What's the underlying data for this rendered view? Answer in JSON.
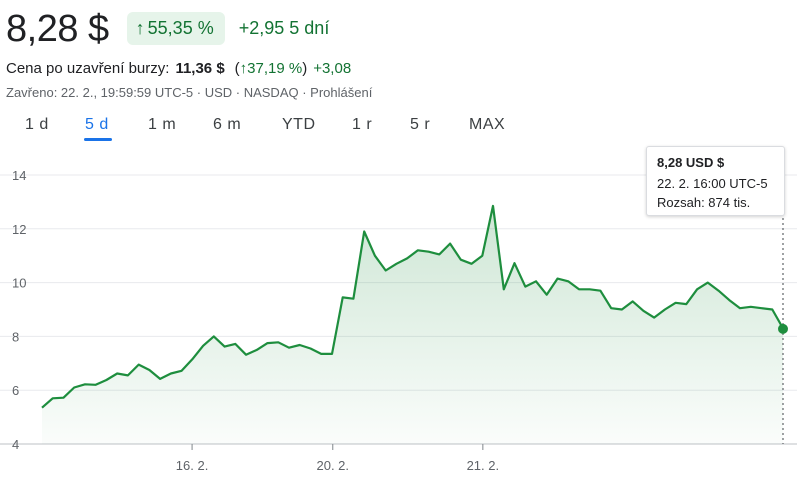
{
  "quote": {
    "price": "8,28 $",
    "change_percent": "55,35 %",
    "change_abs": "+2,95",
    "change_period": "5 dní",
    "change_arrow": "↑"
  },
  "after_hours": {
    "label": "Cena po uzavření burzy:",
    "price": "11,36 $",
    "paren_open": "(",
    "arrow": "↑",
    "percent": "37,19 %",
    "paren_close": ")",
    "delta": "+3,08"
  },
  "status_line": "Zavřeno: 22. 2., 19:59:59 UTC-5 · USD · NASDAQ · Prohlášení",
  "tabs": [
    {
      "label": "1 d"
    },
    {
      "label": "5 d"
    },
    {
      "label": "1 m"
    },
    {
      "label": "6 m"
    },
    {
      "label": "YTD"
    },
    {
      "label": "1 r"
    },
    {
      "label": "5 r"
    },
    {
      "label": "MAX"
    }
  ],
  "active_tab": "5 d",
  "tooltip": {
    "price": "8,28 USD $",
    "time": "22. 2. 16:00 UTC-5",
    "range": "Rozsah: 874 tis."
  },
  "colors": {
    "line": "#1e8e3e",
    "accent": "#1a73e8",
    "positive": "#137333"
  },
  "chart_data": {
    "type": "area",
    "grid": true,
    "ylim": [
      4,
      14
    ],
    "y_ticks": [
      "14",
      "12",
      "10",
      "8",
      "6",
      "4"
    ],
    "x_ticks": [
      {
        "label": "16. 2.",
        "x": 16
      },
      {
        "label": "20. 2.",
        "x": 31
      },
      {
        "label": "21. 2.",
        "x": 47
      }
    ],
    "x_range": [
      0,
      79
    ],
    "series": [
      {
        "values": [
          5.35,
          5.7,
          5.72,
          6.1,
          6.22,
          6.2,
          6.38,
          6.62,
          6.55,
          6.95,
          6.75,
          6.42,
          6.62,
          6.72,
          7.15,
          7.65,
          8.0,
          7.62,
          7.72,
          7.32,
          7.5,
          7.75,
          7.78,
          7.58,
          7.68,
          7.55,
          7.35,
          7.35,
          9.45,
          9.4,
          11.9,
          11.0,
          10.45,
          10.7,
          10.9,
          11.2,
          11.15,
          11.05,
          11.45,
          10.85,
          10.7,
          11.0,
          12.85,
          9.75,
          10.72,
          9.85,
          10.05,
          9.55,
          10.15,
          10.05,
          9.75,
          9.75,
          9.7,
          9.05,
          9.0,
          9.3,
          8.95,
          8.7,
          9.0,
          9.25,
          9.2,
          9.75,
          10.0,
          9.7,
          9.35,
          9.05,
          9.1,
          9.05,
          9.0,
          8.3
        ]
      }
    ],
    "last_point": {
      "value": 8.28
    }
  }
}
